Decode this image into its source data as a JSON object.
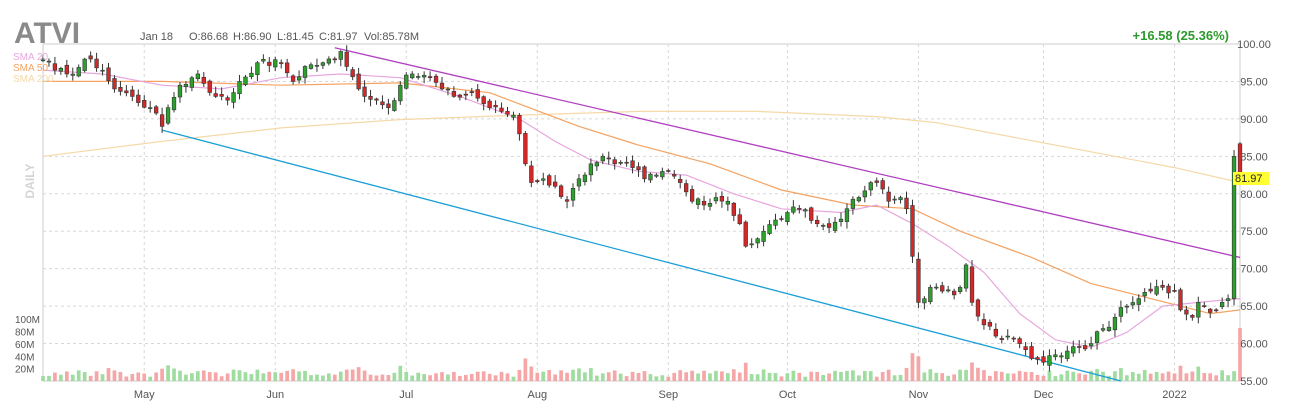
{
  "header": {
    "ticker": "ATVI",
    "date": "Jan 18",
    "open": "O:86.68",
    "high": "H:86.90",
    "low": "L:81.45",
    "close": "C:81.97",
    "volume": "Vol:85.78M",
    "change": "+16.58 (25.36%)",
    "last_price": "81.97",
    "period_label": "DAILY"
  },
  "legend": [
    {
      "label": "SMA 20",
      "color": "#e7a6de"
    },
    {
      "label": "SMA 50",
      "color": "#f4a261"
    },
    {
      "label": "SMA 200",
      "color": "#f5d9a8"
    }
  ],
  "colors": {
    "up": "#2ca02c",
    "down": "#d62728",
    "up_volume": "#9fdc9f",
    "down_volume": "#f5a6a6",
    "grid": "#d8d8d8",
    "channel_upper": "#b040c0",
    "channel_lower": "#1a9fd6",
    "price_highlight": "#ffff33",
    "change_text": "#2c9a2c"
  },
  "chart_data": {
    "type": "candlestick",
    "ylim": [
      55,
      100
    ],
    "y_ticks": [
      "100.00",
      "95.00",
      "90.00",
      "85.00",
      "80.00",
      "75.00",
      "70.00",
      "65.00",
      "60.00",
      "55.00"
    ],
    "x_labels": [
      "May",
      "Jun",
      "Jul",
      "Aug",
      "Sep",
      "Oct",
      "Nov",
      "Dec",
      "2022"
    ],
    "volume_ticks": [
      "100M",
      "80M",
      "60M",
      "40M",
      "20M"
    ],
    "volume_max": 110,
    "sessions": 202,
    "label_sessions": [
      17,
      39,
      61,
      83,
      105,
      125,
      147,
      168,
      190
    ],
    "anchors": [
      [
        0,
        98
      ],
      [
        2,
        96.5
      ],
      [
        4,
        96
      ],
      [
        8,
        98
      ],
      [
        10,
        96.5
      ],
      [
        12,
        94
      ],
      [
        15,
        93
      ],
      [
        18,
        91.5
      ],
      [
        20,
        89
      ],
      [
        21,
        91.5
      ],
      [
        23,
        94.5
      ],
      [
        26,
        96
      ],
      [
        29,
        93
      ],
      [
        31,
        92.5
      ],
      [
        33,
        95
      ],
      [
        36,
        97.5
      ],
      [
        40,
        97.5
      ],
      [
        42,
        95
      ],
      [
        44,
        97
      ],
      [
        47,
        97.5
      ],
      [
        49,
        98
      ],
      [
        50,
        99
      ],
      [
        51,
        97
      ],
      [
        53,
        94
      ],
      [
        56,
        92.5
      ],
      [
        58,
        91.5
      ],
      [
        60,
        94.5
      ],
      [
        62,
        96
      ],
      [
        65,
        95.5
      ],
      [
        67,
        94
      ],
      [
        69,
        93
      ],
      [
        72,
        93.5
      ],
      [
        75,
        91.5
      ],
      [
        77,
        91
      ],
      [
        79,
        90.5
      ],
      [
        80,
        88
      ],
      [
        81,
        84
      ],
      [
        82,
        81.5
      ],
      [
        84,
        82
      ],
      [
        86,
        81
      ],
      [
        88,
        79
      ],
      [
        90,
        82
      ],
      [
        92,
        84
      ],
      [
        94,
        85
      ],
      [
        96,
        84
      ],
      [
        99,
        83.5
      ],
      [
        101,
        82
      ],
      [
        103,
        82.5
      ],
      [
        105,
        83
      ],
      [
        107,
        81.5
      ],
      [
        109,
        79
      ],
      [
        111,
        78.5
      ],
      [
        113,
        79.5
      ],
      [
        115,
        79
      ],
      [
        117,
        76
      ],
      [
        118,
        73
      ],
      [
        120,
        74
      ],
      [
        123,
        76.5
      ],
      [
        125,
        77.5
      ],
      [
        127,
        78
      ],
      [
        130,
        76
      ],
      [
        132,
        75.5
      ],
      [
        135,
        78
      ],
      [
        137,
        79.5
      ],
      [
        139,
        81.5
      ],
      [
        140,
        81.5
      ],
      [
        142,
        79
      ],
      [
        144,
        79.5
      ],
      [
        145,
        78
      ],
      [
        147,
        65.5
      ],
      [
        149,
        67.5
      ],
      [
        151,
        67
      ],
      [
        153,
        66.5
      ],
      [
        154,
        67.5
      ],
      [
        155,
        70.5
      ],
      [
        156,
        65.5
      ],
      [
        158,
        62.5
      ],
      [
        160,
        61
      ],
      [
        162,
        61
      ],
      [
        164,
        60
      ],
      [
        166,
        58
      ],
      [
        168,
        57.5
      ],
      [
        170,
        58.5
      ],
      [
        172,
        59
      ],
      [
        174,
        59.5
      ],
      [
        176,
        60
      ],
      [
        178,
        62
      ],
      [
        180,
        63.5
      ],
      [
        182,
        65
      ],
      [
        184,
        66
      ],
      [
        186,
        67
      ],
      [
        188,
        67.5
      ],
      [
        190,
        67
      ],
      [
        191,
        64.5
      ],
      [
        193,
        63.5
      ],
      [
        194,
        65.5
      ],
      [
        195,
        65
      ],
      [
        197,
        64.5
      ],
      [
        198,
        65.5
      ],
      [
        199,
        66
      ],
      [
        200,
        85
      ],
      [
        201,
        82
      ]
    ],
    "sma20": [
      [
        0,
        96.5
      ],
      [
        10,
        96
      ],
      [
        20,
        94.5
      ],
      [
        30,
        94
      ],
      [
        40,
        95.5
      ],
      [
        50,
        96
      ],
      [
        60,
        95.5
      ],
      [
        70,
        93
      ],
      [
        80,
        90
      ],
      [
        86,
        87
      ],
      [
        92,
        84.5
      ],
      [
        100,
        83
      ],
      [
        108,
        82.5
      ],
      [
        116,
        80
      ],
      [
        124,
        78
      ],
      [
        134,
        77.5
      ],
      [
        140,
        78.5
      ],
      [
        146,
        76
      ],
      [
        152,
        73
      ],
      [
        158,
        69.5
      ],
      [
        164,
        64
      ],
      [
        170,
        60.5
      ],
      [
        176,
        59.5
      ],
      [
        182,
        61.5
      ],
      [
        188,
        65
      ],
      [
        194,
        65.5
      ],
      [
        201,
        66
      ]
    ],
    "sma50": [
      [
        0,
        95
      ],
      [
        20,
        95
      ],
      [
        40,
        94.5
      ],
      [
        60,
        94.8
      ],
      [
        75,
        93.5
      ],
      [
        90,
        89
      ],
      [
        100,
        86.5
      ],
      [
        112,
        84
      ],
      [
        124,
        80.5
      ],
      [
        136,
        78.5
      ],
      [
        146,
        78
      ],
      [
        154,
        75
      ],
      [
        166,
        71.5
      ],
      [
        176,
        68
      ],
      [
        186,
        66
      ],
      [
        196,
        64
      ],
      [
        201,
        64.5
      ]
    ],
    "sma200": [
      [
        0,
        85
      ],
      [
        20,
        87
      ],
      [
        40,
        88.8
      ],
      [
        60,
        89.9
      ],
      [
        80,
        90.5
      ],
      [
        100,
        91
      ],
      [
        120,
        91
      ],
      [
        140,
        90.3
      ],
      [
        150,
        89.5
      ],
      [
        160,
        88
      ],
      [
        170,
        86.5
      ],
      [
        180,
        85
      ],
      [
        190,
        83.5
      ],
      [
        201,
        81.5
      ]
    ],
    "trendline_upper": [
      [
        49,
        99.5
      ],
      [
        201,
        71.5
      ]
    ],
    "trendline_lower": [
      [
        20,
        88.5
      ],
      [
        181,
        55
      ]
    ],
    "last": {
      "open": 86.68,
      "high": 86.9,
      "low": 81.45,
      "close": 81.97,
      "volume": 85.78
    }
  }
}
